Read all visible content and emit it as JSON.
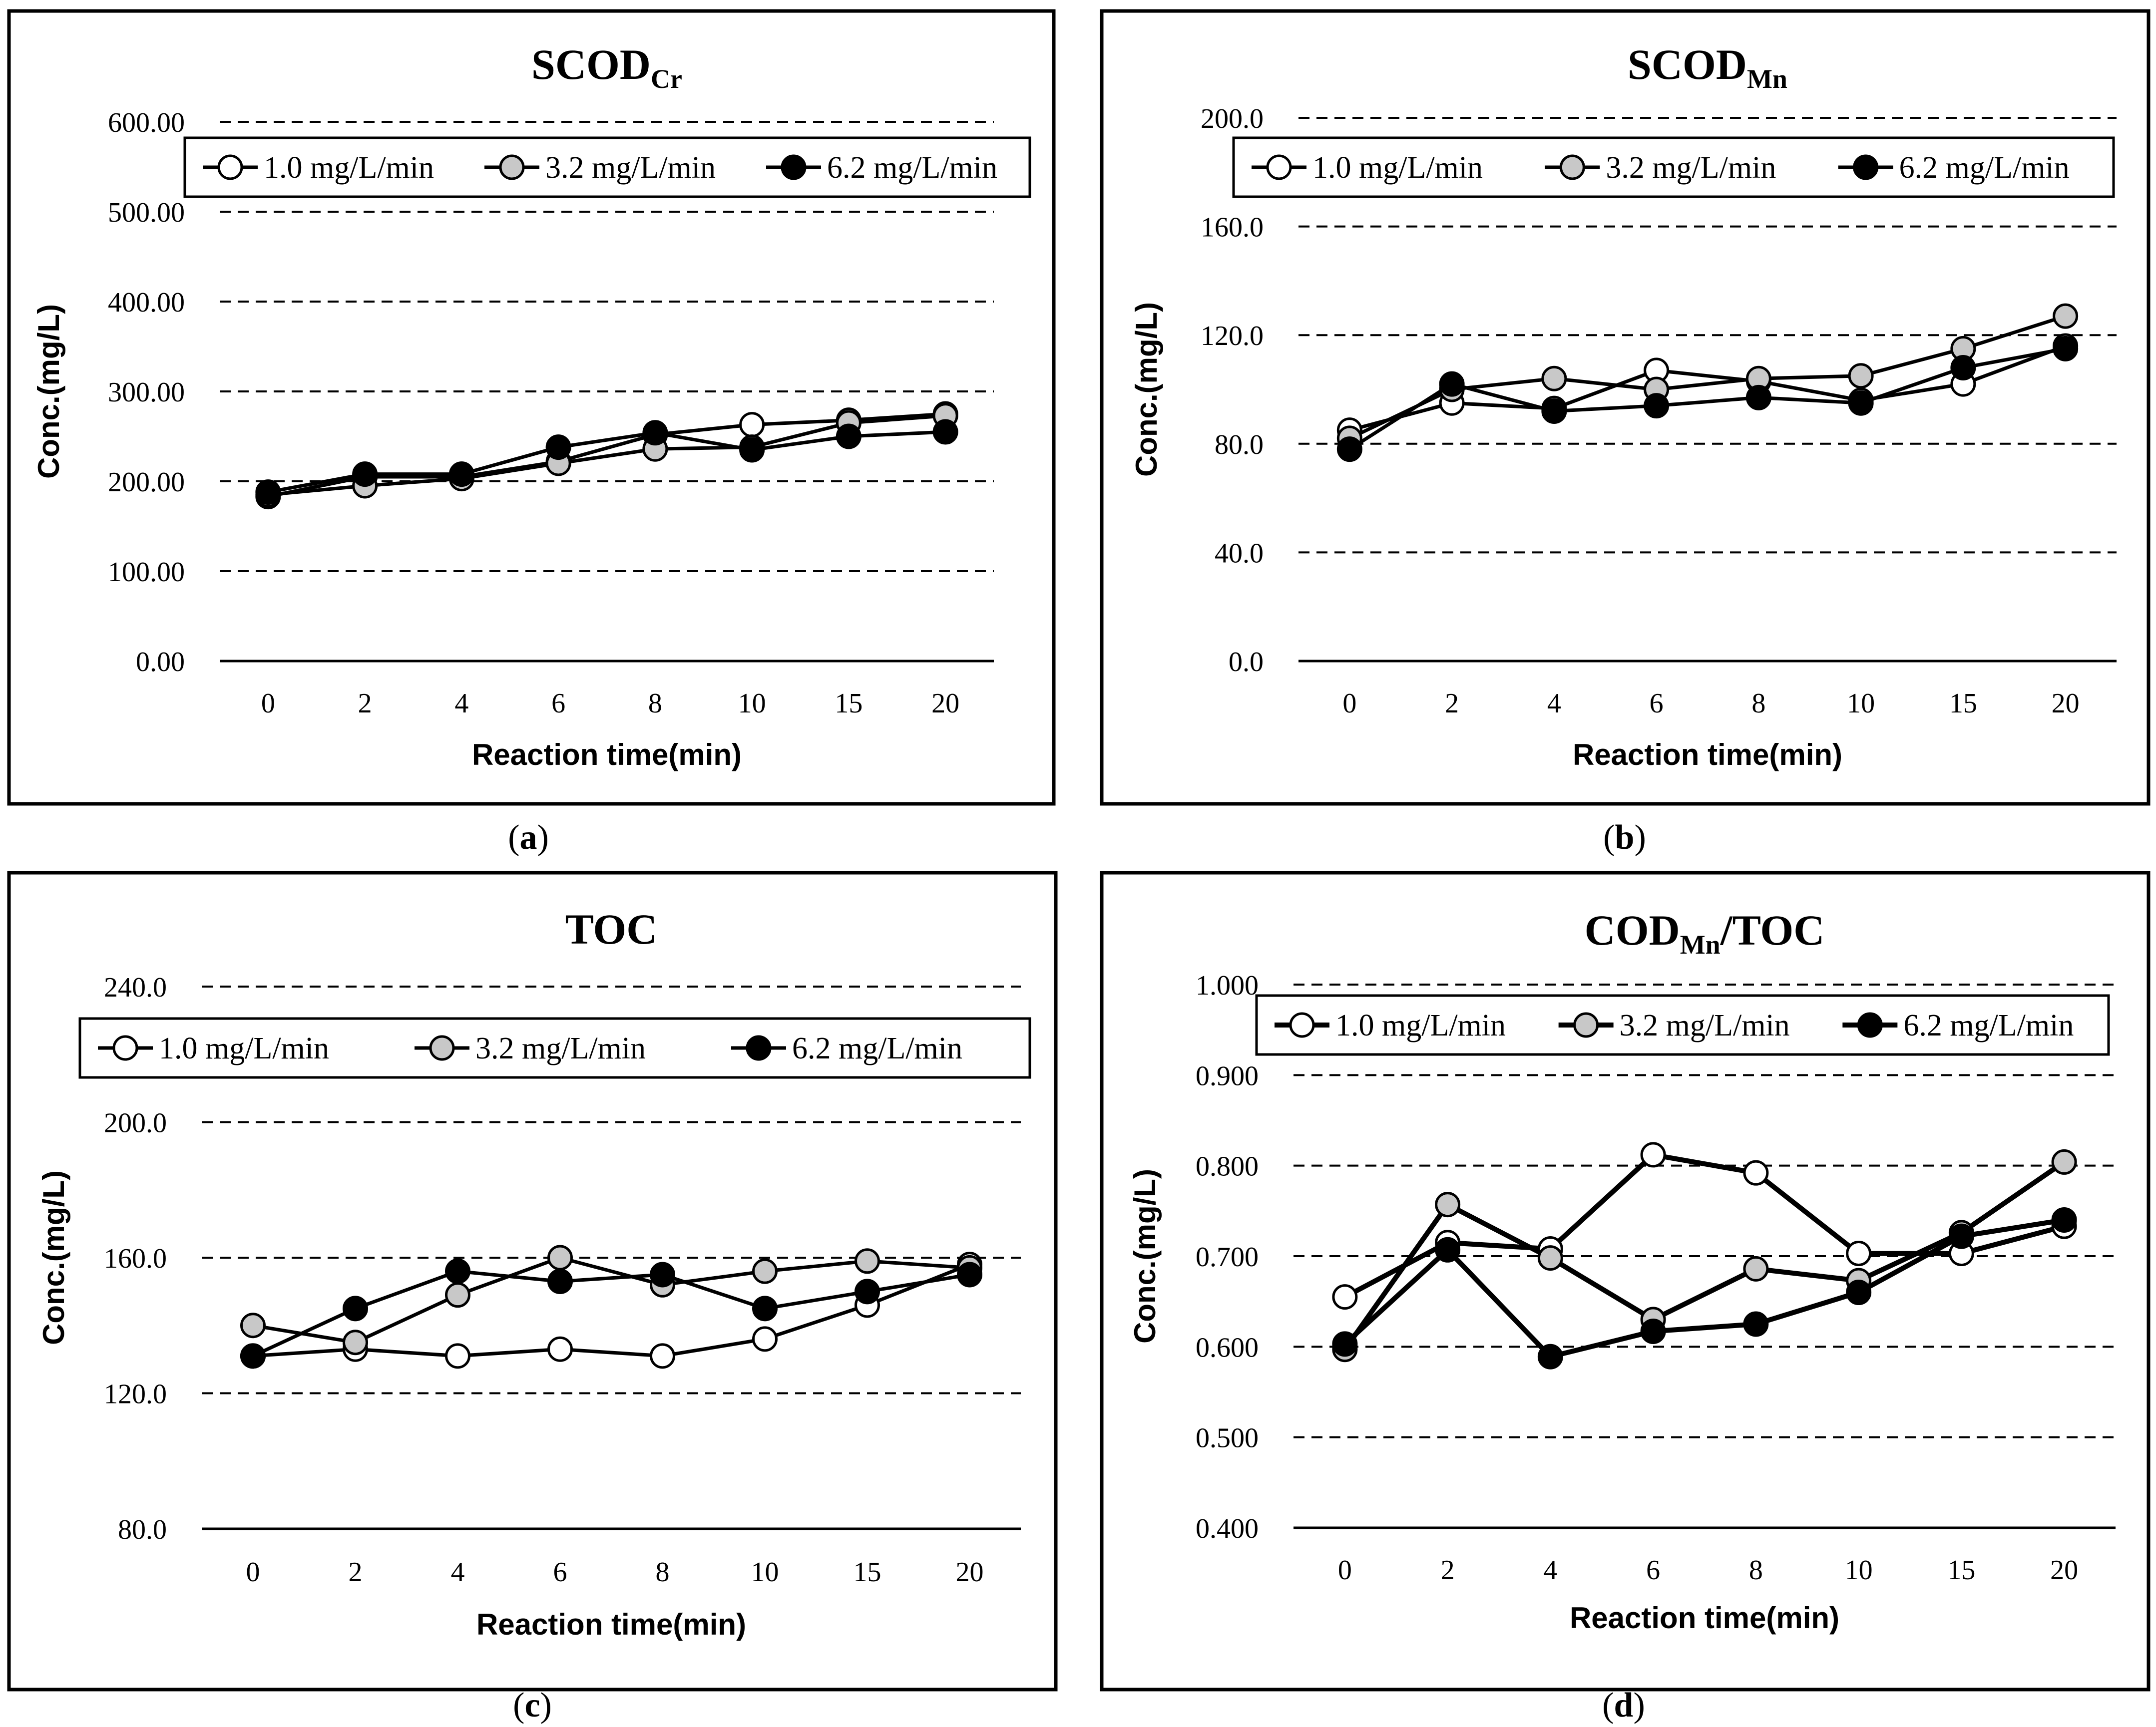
{
  "figure": {
    "series_styles": {
      "1.0 mg/L/min": {
        "fill": "#ffffff"
      },
      "3.2 mg/L/min": {
        "fill": "#c8c8c8"
      },
      "6.2 mg/L/min": {
        "fill": "#000000"
      }
    }
  },
  "chart_data": [
    {
      "id": "a",
      "type": "line",
      "caption": "a",
      "title": "SCOD",
      "title_sub": "Cr",
      "title_suffix": "",
      "xlabel": "Reaction time(min)",
      "ylabel": "Conc.(mg/L)",
      "categories": [
        "0",
        "2",
        "4",
        "6",
        "8",
        "10",
        "15",
        "20"
      ],
      "ylim": [
        0,
        600
      ],
      "yticks": [
        "0.00",
        "100.00",
        "200.00",
        "300.00",
        "400.00",
        "500.00",
        "600.00"
      ],
      "grid": "dashed-horizontal",
      "legend": {
        "position": "top",
        "entries": [
          "1.0 mg/L/min",
          "3.2 mg/L/min",
          "6.2 mg/L/min"
        ]
      },
      "series": [
        {
          "name": "1.0 mg/L/min",
          "values": [
            183,
            205,
            205,
            222,
            252,
            263,
            268,
            275
          ]
        },
        {
          "name": "3.2 mg/L/min",
          "values": [
            185,
            195,
            203,
            220,
            236,
            238,
            265,
            273
          ]
        },
        {
          "name": "6.2 mg/L/min",
          "values": [
            188,
            208,
            208,
            238,
            254,
            235,
            250,
            255
          ]
        }
      ]
    },
    {
      "id": "b",
      "type": "line",
      "caption": "b",
      "title": "SCOD",
      "title_sub": "Mn",
      "title_suffix": "",
      "xlabel": "Reaction time(min)",
      "ylabel": "Conc.(mg/L)",
      "categories": [
        "0",
        "2",
        "4",
        "6",
        "8",
        "10",
        "15",
        "20"
      ],
      "ylim": [
        0,
        200
      ],
      "yticks": [
        "0.0",
        "40.0",
        "80.0",
        "120.0",
        "160.0",
        "200.0"
      ],
      "grid": "dashed-horizontal",
      "legend": {
        "position": "top",
        "entries": [
          "1.0 mg/L/min",
          "3.2 mg/L/min",
          "6.2 mg/L/min"
        ]
      },
      "series": [
        {
          "name": "1.0 mg/L/min",
          "values": [
            85,
            95,
            93,
            107,
            103,
            96,
            102,
            116
          ]
        },
        {
          "name": "3.2 mg/L/min",
          "values": [
            82,
            100,
            104,
            100,
            104,
            105,
            115,
            127
          ]
        },
        {
          "name": "6.2 mg/L/min",
          "values": [
            78,
            102,
            92,
            94,
            97,
            95,
            108,
            115
          ]
        }
      ]
    },
    {
      "id": "c",
      "type": "line",
      "caption": "c",
      "title": "TOC",
      "title_sub": "",
      "title_suffix": "",
      "xlabel": "Reaction time(min)",
      "ylabel": "Conc.(mg/L)",
      "categories": [
        "0",
        "2",
        "4",
        "6",
        "8",
        "10",
        "15",
        "20"
      ],
      "ylim": [
        80,
        240
      ],
      "yticks": [
        "80.0",
        "120.0",
        "160.0",
        "200.0",
        "240.0"
      ],
      "grid": "dashed-horizontal",
      "legend": {
        "position": "top",
        "entries": [
          "1.0 mg/L/min",
          "3.2 mg/L/min",
          "6.2 mg/L/min"
        ]
      },
      "series": [
        {
          "name": "1.0 mg/L/min",
          "values": [
            131,
            133,
            131,
            133,
            131,
            136,
            146,
            158
          ]
        },
        {
          "name": "3.2 mg/L/min",
          "values": [
            140,
            135,
            149,
            160,
            152,
            156,
            159,
            157
          ]
        },
        {
          "name": "6.2 mg/L/min",
          "values": [
            131,
            145,
            156,
            153,
            155,
            145,
            150,
            155
          ]
        }
      ]
    },
    {
      "id": "d",
      "type": "line",
      "caption": "d",
      "title": "COD",
      "title_sub": "Mn",
      "title_suffix": "/TOC",
      "xlabel": "Reaction time(min)",
      "ylabel": "Conc.(mg/L)",
      "categories": [
        "0",
        "2",
        "4",
        "6",
        "8",
        "10",
        "15",
        "20"
      ],
      "ylim": [
        0.4,
        1.0
      ],
      "yticks": [
        "0.400",
        "0.500",
        "0.600",
        "0.700",
        "0.800",
        "0.900",
        "1.000"
      ],
      "grid": "dashed-horizontal",
      "legend": {
        "position": "top",
        "entries": [
          "1.0 mg/L/min",
          "3.2 mg/L/min",
          "6.2 mg/L/min"
        ]
      },
      "series": [
        {
          "name": "1.0 mg/L/min",
          "values": [
            0.655,
            0.715,
            0.708,
            0.812,
            0.792,
            0.703,
            0.703,
            0.733
          ]
        },
        {
          "name": "3.2 mg/L/min",
          "values": [
            0.597,
            0.757,
            0.698,
            0.63,
            0.686,
            0.673,
            0.726,
            0.804
          ]
        },
        {
          "name": "6.2 mg/L/min",
          "values": [
            0.603,
            0.707,
            0.589,
            0.617,
            0.625,
            0.66,
            0.722,
            0.74
          ]
        }
      ]
    }
  ]
}
